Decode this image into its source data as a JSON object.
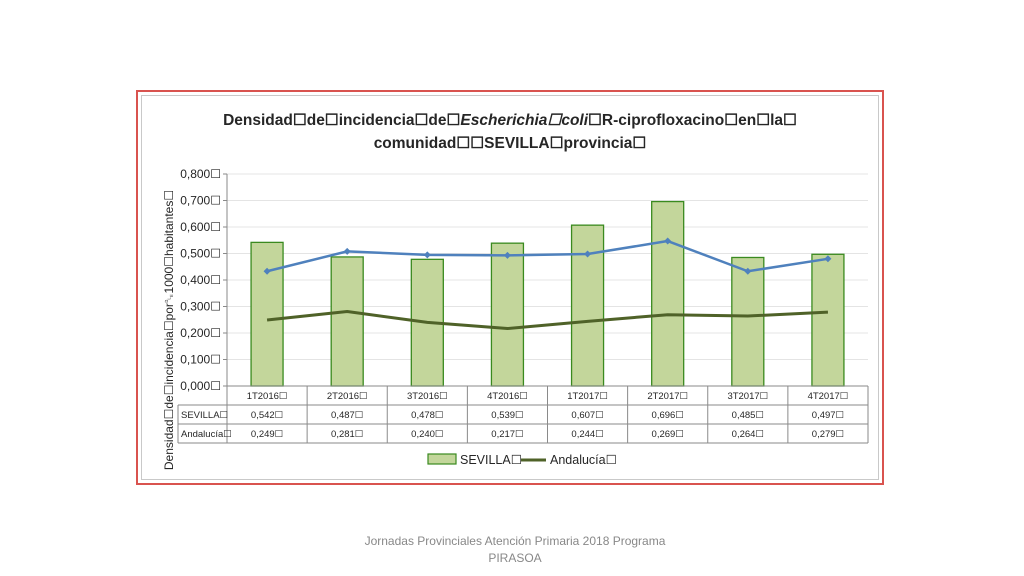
{
  "chart_data": {
    "type": "bar",
    "title_line1": "Densidad☐de☐incidencia☐de☐",
    "title_italic": "Escherichia☐coli",
    "title_line1_rest": "☐R-ciprofloxacino☐en☐la☐",
    "title_line2": "comunidad☐☐SEVILLA☐provincia☐",
    "ylabel": "Densidad☐de☐incidencia☐por␐1000☐habitantes☐",
    "ylim": [
      0,
      0.8
    ],
    "yticks": [
      "0,000☐",
      "0,100☐",
      "0,200☐",
      "0,300☐",
      "0,400☐",
      "0,500☐",
      "0,600☐",
      "0,700☐",
      "0,800☐"
    ],
    "categories": [
      "1T2016☐",
      "2T2016☐",
      "3T2016☐",
      "4T2016☐",
      "1T2017☐",
      "2T2017☐",
      "3T2017☐",
      "4T2017☐"
    ],
    "series": [
      {
        "name": "SEVILLA☐",
        "kind": "bar",
        "color": "#c3d69b",
        "edge": "#3a8a1f",
        "values": [
          0.542,
          0.487,
          0.478,
          0.539,
          0.607,
          0.696,
          0.485,
          0.497
        ],
        "labels": [
          "0,542☐",
          "0,487☐",
          "0,478☐",
          "0,539☐",
          "0,607☐",
          "0,696☐",
          "0,485☐",
          "0,497☐"
        ]
      },
      {
        "name": "Andalucía☐",
        "kind": "line",
        "color": "#4f6228",
        "values": [
          0.249,
          0.281,
          0.24,
          0.217,
          0.244,
          0.269,
          0.264,
          0.279
        ],
        "labels": [
          "0,249☐",
          "0,281☐",
          "0,240☐",
          "0,217☐",
          "0,244☐",
          "0,269☐",
          "0,264☐",
          "0,279☐"
        ]
      }
    ],
    "overlay_line": {
      "color": "#4f81bd",
      "values": [
        0.433,
        0.508,
        0.495,
        0.493,
        0.498,
        0.547,
        0.433,
        0.48
      ]
    },
    "legend_placement": "bottom"
  },
  "footer": {
    "line1": "Jornadas Provinciales Atención Primaria 2018  Programa",
    "line2": "PIRASOA"
  }
}
